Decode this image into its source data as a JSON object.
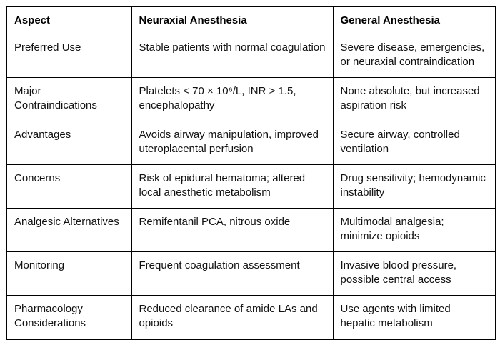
{
  "table": {
    "columns": [
      "Aspect",
      "Neuraxial Anesthesia",
      "General Anesthesia"
    ],
    "rows": [
      {
        "aspect": "Preferred Use",
        "neuraxial": "Stable patients with normal coagulation",
        "general": "Severe disease, emergencies, or neuraxial contraindication"
      },
      {
        "aspect": "Major Contraindications",
        "neuraxial": "Platelets < 70 × 10⁶/L, INR > 1.5, encephalopathy",
        "general": "None absolute, but increased aspiration risk"
      },
      {
        "aspect": "Advantages",
        "neuraxial": "Avoids airway manipulation, improved uteroplacental perfusion",
        "general": "Secure airway, controlled ventilation"
      },
      {
        "aspect": "Concerns",
        "neuraxial": "Risk of epidural hematoma; altered local anesthetic metabolism",
        "general": "Drug sensitivity; hemodynamic instability"
      },
      {
        "aspect": "Analgesic Alternatives",
        "neuraxial": "Remifentanil PCA, nitrous oxide",
        "general": "Multimodal analgesia; minimize opioids"
      },
      {
        "aspect": "Monitoring",
        "neuraxial": "Frequent coagulation assessment",
        "general": "Invasive blood pressure, possible central access"
      },
      {
        "aspect": "Pharmacology Considerations",
        "neuraxial": "Reduced clearance of amide LAs and opioids",
        "general": "Use agents with limited hepatic metabolism"
      }
    ]
  },
  "colors": {
    "border": "#000000",
    "text": "#111111",
    "background": "#ffffff"
  }
}
